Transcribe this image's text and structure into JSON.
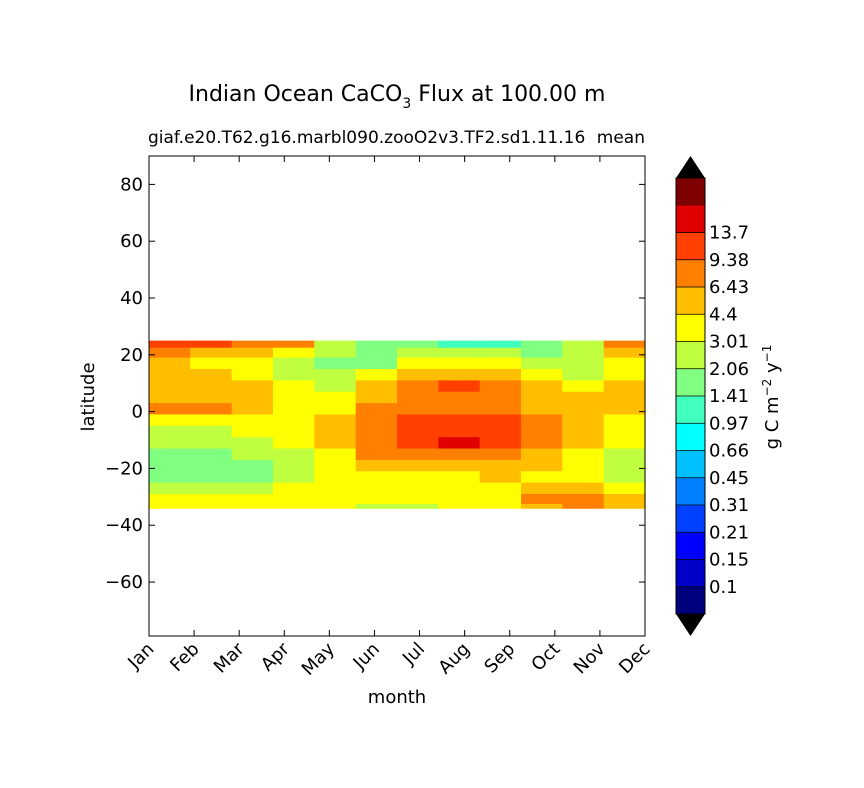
{
  "chart_data": {
    "type": "heatmap",
    "title_main": "Indian Ocean CaCO",
    "title_sub": "3",
    "title_rest": " Flux at 100.00 m",
    "subtitle_case": "giaf.e20.T62.g16.marbl090.zooO2v3.TF2.sd1.11.16",
    "subtitle_right": "mean",
    "xlabel": "month",
    "ylabel": "latitude",
    "x_ticks": [
      "Jan",
      "Feb",
      "Mar",
      "Apr",
      "May",
      "Jun",
      "Jul",
      "Aug",
      "Sep",
      "Oct",
      "Nov",
      "Dec"
    ],
    "y_ticks": [
      80,
      60,
      40,
      20,
      0,
      -20,
      -40,
      -60
    ],
    "y_tick_labels": [
      "80",
      "60",
      "40",
      "20",
      "0",
      "−20",
      "−40",
      "−60"
    ],
    "ylim": [
      -79,
      90
    ],
    "xlim": [
      0,
      11
    ],
    "data_lat_range": [
      -34,
      25
    ],
    "colorbar": {
      "label_base": "g C m",
      "label_exp1": "−2",
      "label_mid": " y",
      "label_exp2": "−1",
      "levels": [
        "0.1",
        "0.15",
        "0.21",
        "0.31",
        "0.45",
        "0.66",
        "0.97",
        "1.41",
        "2.06",
        "3.01",
        "4.4",
        "6.43",
        "9.38",
        "13.7"
      ],
      "colors": [
        "#00007f",
        "#0000c8",
        "#0000ff",
        "#0040ff",
        "#0080ff",
        "#00c0ff",
        "#00ffff",
        "#40ffbf",
        "#80ff80",
        "#bfff40",
        "#ffff00",
        "#ffbf00",
        "#ff8000",
        "#ff4000",
        "#e00000",
        "#7f0000"
      ],
      "extend_low_color": "#000000",
      "extend_high_color": "#000000"
    },
    "bands": [
      {
        "lat": 24,
        "levels": [
          13,
          13,
          12,
          12,
          9,
          8,
          8,
          7,
          7,
          8,
          9,
          12
        ]
      },
      {
        "lat": 21,
        "levels": [
          12,
          11,
          11,
          10,
          9,
          8,
          9,
          9,
          9,
          8,
          9,
          11
        ]
      },
      {
        "lat": 17,
        "levels": [
          11,
          10,
          10,
          9,
          8,
          8,
          10,
          10,
          10,
          9,
          9,
          10
        ]
      },
      {
        "lat": 13,
        "levels": [
          11,
          11,
          10,
          9,
          9,
          10,
          11,
          11,
          11,
          10,
          9,
          10
        ]
      },
      {
        "lat": 9,
        "levels": [
          11,
          11,
          11,
          10,
          9,
          11,
          12,
          13,
          12,
          11,
          10,
          11
        ]
      },
      {
        "lat": 5,
        "levels": [
          11,
          11,
          11,
          10,
          10,
          11,
          12,
          12,
          12,
          11,
          11,
          11
        ]
      },
      {
        "lat": 1,
        "levels": [
          12,
          12,
          11,
          10,
          10,
          12,
          12,
          12,
          12,
          11,
          11,
          11
        ]
      },
      {
        "lat": -3,
        "levels": [
          10,
          10,
          10,
          10,
          11,
          12,
          13,
          13,
          13,
          12,
          11,
          10
        ]
      },
      {
        "lat": -7,
        "levels": [
          9,
          9,
          10,
          10,
          11,
          12,
          13,
          13,
          13,
          12,
          11,
          10
        ]
      },
      {
        "lat": -11,
        "levels": [
          9,
          9,
          9,
          10,
          11,
          12,
          13,
          14,
          13,
          12,
          11,
          10
        ]
      },
      {
        "lat": -15,
        "levels": [
          8,
          8,
          9,
          9,
          10,
          12,
          12,
          12,
          12,
          11,
          10,
          9
        ]
      },
      {
        "lat": -19,
        "levels": [
          8,
          8,
          8,
          9,
          10,
          11,
          11,
          11,
          11,
          11,
          10,
          9
        ]
      },
      {
        "lat": -23,
        "levels": [
          8,
          8,
          8,
          9,
          10,
          10,
          10,
          10,
          11,
          10,
          10,
          9
        ]
      },
      {
        "lat": -27,
        "levels": [
          9,
          9,
          9,
          10,
          10,
          10,
          10,
          10,
          10,
          11,
          11,
          10
        ]
      },
      {
        "lat": -31,
        "levels": [
          10,
          10,
          10,
          10,
          10,
          10,
          10,
          10,
          10,
          12,
          12,
          11
        ]
      },
      {
        "lat": -34,
        "levels": [
          10,
          10,
          10,
          10,
          10,
          9,
          9,
          10,
          10,
          11,
          12,
          11
        ]
      }
    ]
  }
}
